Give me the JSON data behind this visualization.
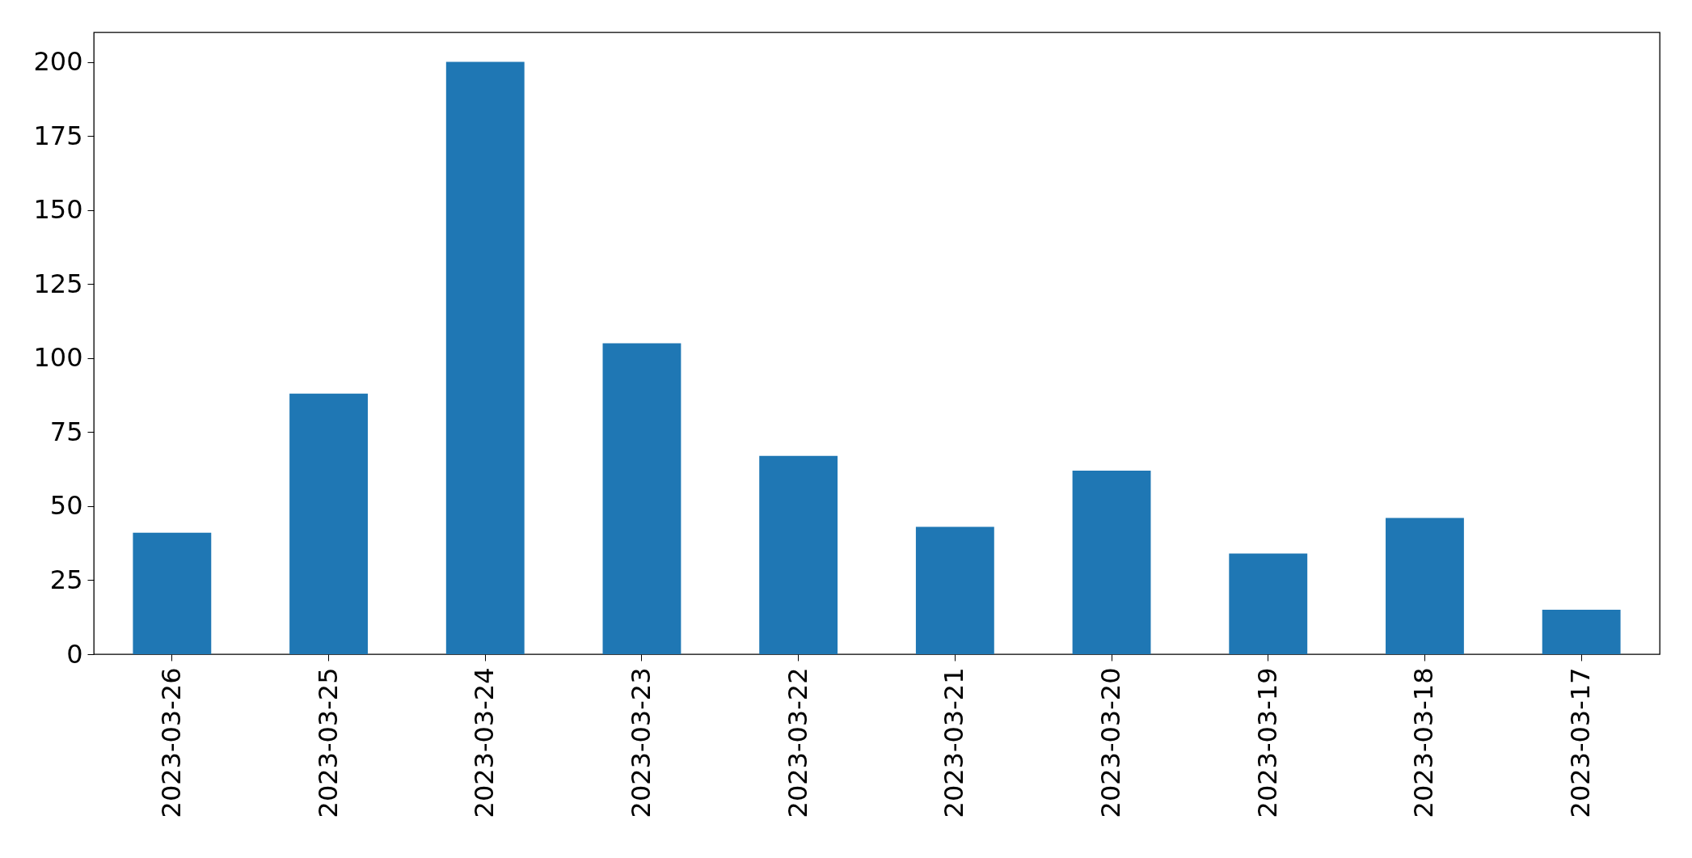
{
  "chart_data": {
    "type": "bar",
    "categories": [
      "2023-03-26",
      "2023-03-25",
      "2023-03-24",
      "2023-03-23",
      "2023-03-22",
      "2023-03-21",
      "2023-03-20",
      "2023-03-19",
      "2023-03-18",
      "2023-03-17"
    ],
    "values": [
      41,
      88,
      200,
      105,
      67,
      43,
      62,
      34,
      46,
      15
    ],
    "color": "#1f77b4",
    "ylim": [
      0,
      210
    ],
    "yticks": [
      0,
      25,
      50,
      75,
      100,
      125,
      150,
      175,
      200
    ],
    "grid": false
  }
}
